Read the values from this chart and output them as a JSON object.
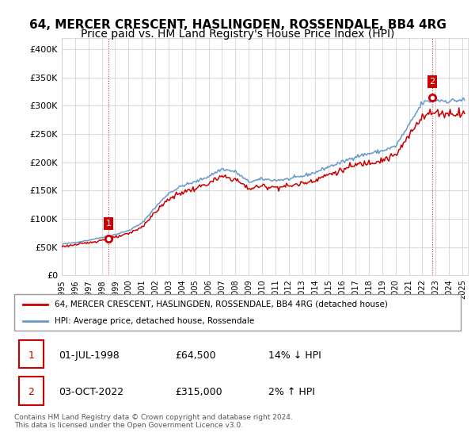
{
  "title": "64, MERCER CRESCENT, HASLINGDEN, ROSSENDALE, BB4 4RG",
  "subtitle": "Price paid vs. HM Land Registry's House Price Index (HPI)",
  "ylim": [
    0,
    420000
  ],
  "yticks": [
    0,
    50000,
    100000,
    150000,
    200000,
    250000,
    300000,
    350000,
    400000
  ],
  "ytick_labels": [
    "£0",
    "£50K",
    "£100K",
    "£150K",
    "£200K",
    "£250K",
    "£300K",
    "£350K",
    "£400K"
  ],
  "sale1_price": 64500,
  "sale2_price": 315000,
  "hpi_color": "#6699cc",
  "price_color": "#cc0000",
  "background_color": "#ffffff",
  "grid_color": "#cccccc",
  "legend_entry1": "64, MERCER CRESCENT, HASLINGDEN, ROSSENDALE, BB4 4RG (detached house)",
  "legend_entry2": "HPI: Average price, detached house, Rossendale",
  "table_row1": [
    "1",
    "01-JUL-1998",
    "£64,500",
    "14% ↓ HPI"
  ],
  "table_row2": [
    "2",
    "03-OCT-2022",
    "£315,000",
    "2% ↑ HPI"
  ],
  "footnote": "Contains HM Land Registry data © Crown copyright and database right 2024.\nThis data is licensed under the Open Government Licence v3.0.",
  "hpi_anchors_years": [
    1995.0,
    1996.0,
    1997.0,
    1998.0,
    1999.0,
    2000.0,
    2001.0,
    2002.0,
    2003.0,
    2004.0,
    2005.0,
    2006.0,
    2007.0,
    2008.0,
    2009.0,
    2010.0,
    2011.0,
    2012.0,
    2013.0,
    2014.0,
    2015.0,
    2016.0,
    2017.0,
    2018.0,
    2019.0,
    2020.0,
    2021.0,
    2022.0,
    2023.0,
    2024.0,
    2025.0
  ],
  "hpi_anchors_values": [
    55000,
    58000,
    62000,
    67000,
    72000,
    79000,
    92000,
    120000,
    145000,
    158000,
    165000,
    175000,
    188000,
    183000,
    165000,
    170000,
    168000,
    170000,
    175000,
    182000,
    192000,
    200000,
    210000,
    215000,
    220000,
    228000,
    265000,
    305000,
    310000,
    308000,
    310000
  ],
  "title_fontsize": 11,
  "subtitle_fontsize": 10
}
